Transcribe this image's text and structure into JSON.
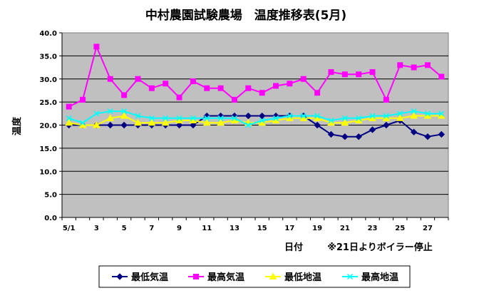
{
  "chart_data": {
    "type": "line",
    "title": "中村農園試験農場　温度推移表(5月)",
    "xlabel": "日付",
    "ylabel": "温度",
    "note": "※21日よりボイラー停止",
    "x": [
      1,
      2,
      3,
      4,
      5,
      6,
      7,
      8,
      9,
      10,
      11,
      12,
      13,
      14,
      15,
      16,
      17,
      18,
      19,
      20,
      21,
      22,
      23,
      24,
      25,
      26,
      27,
      28
    ],
    "x_tick_labels": [
      "5/1",
      "3",
      "5",
      "7",
      "9",
      "11",
      "13",
      "15",
      "17",
      "19",
      "21",
      "23",
      "25",
      "27"
    ],
    "x_tick_positions": [
      1,
      3,
      5,
      7,
      9,
      11,
      13,
      15,
      17,
      19,
      21,
      23,
      25,
      27
    ],
    "ylim": [
      0,
      40
    ],
    "y_ticks": [
      "0.0",
      "5.0",
      "10.0",
      "15.0",
      "20.0",
      "25.0",
      "30.0",
      "35.0",
      "40.0"
    ],
    "grid": true,
    "plot_background": "#c0c0c0",
    "legend_position": "bottom",
    "series": [
      {
        "name": "最低気温",
        "color": "#000080",
        "marker": "diamond",
        "values": [
          20,
          20,
          20,
          20,
          20,
          20,
          20,
          20,
          20,
          20,
          22,
          22,
          22,
          22,
          22,
          22,
          22,
          22,
          20,
          18,
          17.5,
          17.5,
          19,
          20,
          21,
          18.5,
          17.5,
          18
        ]
      },
      {
        "name": "最高気温",
        "color": "#ff00ff",
        "marker": "square",
        "values": [
          24,
          25.5,
          37,
          30,
          26.5,
          30,
          28,
          29,
          26,
          29.5,
          28,
          28,
          25.5,
          28,
          27,
          28.5,
          29,
          30,
          27,
          31.5,
          31,
          31,
          31.5,
          25.5,
          33,
          32.5,
          33,
          30.5
        ]
      },
      {
        "name": "最低地温",
        "color": "#ffff00",
        "marker": "triangle",
        "values": [
          20.5,
          20,
          20,
          21.5,
          22,
          20.5,
          20.5,
          20.5,
          21,
          21,
          20.5,
          20.5,
          21,
          20.5,
          20.5,
          21,
          21.5,
          21.5,
          21.5,
          20.5,
          20.5,
          21,
          21.5,
          21.5,
          21.5,
          22,
          22,
          22
        ]
      },
      {
        "name": "最高地温",
        "color": "#00ffff",
        "marker": "x",
        "values": [
          21.5,
          20.5,
          22.5,
          23,
          23,
          22,
          21.5,
          21.5,
          21.5,
          21.5,
          21.5,
          21.5,
          21.5,
          20,
          21,
          21.5,
          22,
          22,
          22,
          21,
          21.5,
          21.5,
          22,
          22,
          22.5,
          23,
          22.5,
          22.5
        ]
      }
    ]
  }
}
